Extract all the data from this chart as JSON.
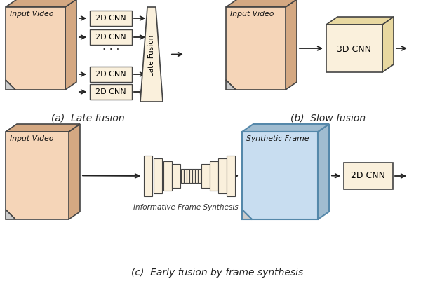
{
  "background_color": "#ffffff",
  "figure_width": 6.2,
  "figure_height": 4.08,
  "dpi": 100,
  "box_face_color": "#faf0dc",
  "box_edge_color": "#444444",
  "cnn_box_color": "#faf0dc",
  "cnn_box_dark": "#e8d8a0",
  "arrow_color": "#222222",
  "caption_a": "(a)  Late fusion",
  "caption_b": "(b)  Slow fusion",
  "caption_c": "(c)  Early fusion by frame synthesis",
  "label_2d_cnn": "2D CNN",
  "label_3d_cnn": "3D CNN",
  "label_late_fusion": "Late Fusion",
  "label_input_video": "Input Video",
  "label_synthetic_frame": "Synthetic Frame",
  "label_ifs": "Informative Frame Synthesis",
  "caption_font_size": 10,
  "video_box_color": "#f5d5b8",
  "video_box_dark": "#d4a882",
  "synth_box_color": "#c8ddf0",
  "synth_box_edge": "#6699bb",
  "dots": "· · ·"
}
